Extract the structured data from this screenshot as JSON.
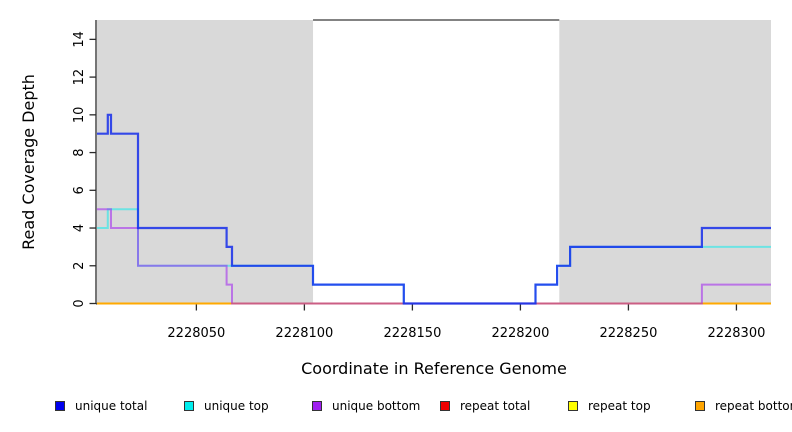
{
  "chart_data": {
    "type": "line",
    "step": true,
    "title": "",
    "xlabel": "Coordinate in Reference Genome",
    "ylabel": "Read Coverage Depth",
    "xlim": [
      2228004,
      2228316
    ],
    "ylim": [
      0,
      15
    ],
    "grid": false,
    "legend_position": "bottom",
    "x_ticks": [
      2228050,
      2228100,
      2228150,
      2228200,
      2228250,
      2228300
    ],
    "x_tick_labels": [
      "2228050",
      "2228100",
      "2228150",
      "2228200",
      "2228250",
      "2228300"
    ],
    "y_ticks": [
      0,
      2,
      4,
      6,
      8,
      10,
      12,
      14
    ],
    "y_tick_labels": [
      "0",
      "2",
      "4",
      "6",
      "8",
      "10",
      "12",
      "14"
    ],
    "shaded_regions": [
      {
        "from": 2228004,
        "to": 2228104,
        "color": "#d9d9d9"
      },
      {
        "from": 2228218,
        "to": 2228316,
        "color": "#d9d9d9"
      }
    ],
    "draw_order": [
      "repeat total",
      "repeat top",
      "repeat bottom",
      "unique top",
      "unique bottom",
      "unique total"
    ],
    "series": [
      {
        "name": "unique total",
        "color": "#0000EE",
        "stroke": "rgba(16,40,235,0.82)",
        "width": 2.2,
        "steps": [
          [
            2228004,
            9
          ],
          [
            2228009,
            10
          ],
          [
            2228010.5,
            9
          ],
          [
            2228023,
            4
          ],
          [
            2228064,
            3
          ],
          [
            2228066.5,
            2
          ],
          [
            2228104,
            1
          ],
          [
            2228146,
            0
          ],
          [
            2228207,
            1
          ],
          [
            2228217,
            2
          ],
          [
            2228223,
            3
          ],
          [
            2228284,
            4
          ]
        ],
        "end": 2228316
      },
      {
        "name": "unique top",
        "color": "#00EEEE",
        "stroke": "rgba(0,238,238,0.5)",
        "width": 2,
        "steps": [
          [
            2228004,
            4
          ],
          [
            2228009,
            5
          ],
          [
            2228023,
            2
          ],
          [
            2228104,
            1
          ],
          [
            2228146,
            0
          ],
          [
            2228207,
            1
          ],
          [
            2228217,
            2
          ],
          [
            2228223,
            3
          ]
        ],
        "end": 2228316
      },
      {
        "name": "unique bottom",
        "color": "#A020F0",
        "stroke": "rgba(160,32,240,0.55)",
        "width": 2,
        "steps": [
          [
            2228004,
            5
          ],
          [
            2228010.5,
            4
          ],
          [
            2228023,
            2
          ],
          [
            2228064,
            1
          ],
          [
            2228066.5,
            0
          ],
          [
            2228284,
            1
          ]
        ],
        "end": 2228316
      },
      {
        "name": "repeat total",
        "color": "#EE0000",
        "stroke": "rgba(238,0,0,0.65)",
        "width": 2,
        "steps": [
          [
            2228004,
            0
          ]
        ],
        "end": 2228316
      },
      {
        "name": "repeat top",
        "color": "#FFFF00",
        "stroke": "rgba(255,255,0,0.9)",
        "width": 2,
        "steps": [
          [
            2228004,
            0
          ]
        ],
        "end": 2228316
      },
      {
        "name": "repeat bottom",
        "color": "#FFA500",
        "stroke": "rgba(255,165,0,0.95)",
        "width": 2,
        "steps": [
          [
            2228004,
            0
          ]
        ],
        "end": 2228316
      }
    ]
  },
  "legend": {
    "items": [
      {
        "label": "unique total",
        "color": "#0000EE"
      },
      {
        "label": "unique top",
        "color": "#00EEEE"
      },
      {
        "label": "unique bottom",
        "color": "#A020F0"
      },
      {
        "label": "repeat total",
        "color": "#EE0000"
      },
      {
        "label": "repeat top",
        "color": "#FFFF00"
      },
      {
        "label": "repeat bottom",
        "color": "#FFA500"
      }
    ]
  }
}
